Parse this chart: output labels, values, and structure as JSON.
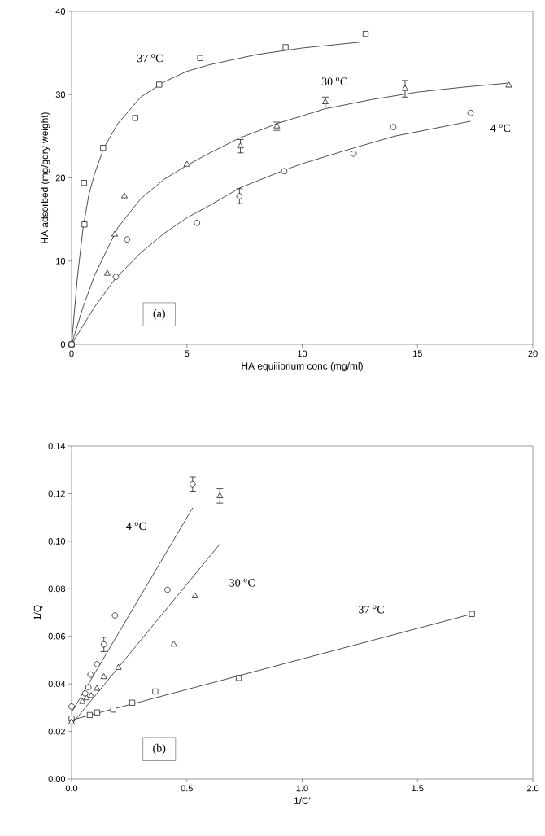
{
  "chart_data": [
    {
      "type": "scatter",
      "xlabel": "HA equilibrium conc (mg/ml)",
      "ylabel": "HA adsorbed  (mg/gdry weight)",
      "xlim": [
        0,
        20
      ],
      "ylim": [
        0,
        40
      ],
      "xticks": [
        0,
        5,
        10,
        15,
        20
      ],
      "yticks": [
        0,
        10,
        20,
        30,
        40
      ],
      "series": [
        {
          "marker": "square",
          "color": "#000000",
          "x": [
            0,
            0.54,
            0.56,
            1.37,
            2.76,
            3.8,
            5.58,
            9.28,
            12.75
          ],
          "values": [
            0,
            19.4,
            14.4,
            23.6,
            27.2,
            31.2,
            34.4,
            35.7,
            37.3
          ]
        },
        {
          "marker": "triangle",
          "color": "#000000",
          "x": [
            0,
            1.55,
            1.87,
            2.29,
            5.0,
            7.32,
            8.9,
            11.0,
            14.46,
            18.96
          ],
          "values": [
            0,
            8.5,
            13.2,
            17.8,
            21.6,
            23.8,
            26.2,
            29.1,
            30.7,
            31.1
          ],
          "errors": [
            null,
            null,
            null,
            null,
            null,
            0.8,
            0.5,
            0.6,
            1.0,
            null
          ]
        },
        {
          "marker": "circle",
          "color": "#000000",
          "x": [
            1.92,
            2.41,
            5.44,
            7.28,
            9.22,
            12.23,
            13.95,
            17.3,
            0
          ],
          "values": [
            8.1,
            12.6,
            14.6,
            17.8,
            20.8,
            22.9,
            26.1,
            27.8,
            0
          ],
          "errors": [
            null,
            null,
            null,
            0.9,
            null,
            null,
            null,
            null,
            null
          ]
        },
        {
          "type": "line",
          "name": "37 $^{o}$C",
          "color": "#000000",
          "x": [
            0,
            0.25,
            0.5,
            0.75,
            1,
            1.4,
            2,
            3,
            4,
            5,
            6,
            8,
            10,
            12.5
          ],
          "values": [
            0,
            8,
            14,
            18,
            20.5,
            23.6,
            26.5,
            29.7,
            31.5,
            32.8,
            33.6,
            34.8,
            35.6,
            36.3
          ]
        },
        {
          "type": "line",
          "name": "30 $^{o}$C",
          "color": "#000000",
          "x": [
            0,
            0.5,
            1,
            2,
            3,
            4,
            5,
            6,
            7.3,
            9,
            11,
            13,
            15,
            17,
            19
          ],
          "values": [
            0,
            4.5,
            8.3,
            14,
            17.5,
            19.8,
            21.5,
            23,
            24.8,
            26.6,
            28.3,
            29.4,
            30.3,
            30.9,
            31.4
          ]
        },
        {
          "type": "line",
          "name": "4 $^{o}$C",
          "color": "#000000",
          "x": [
            0,
            1,
            1.9,
            3,
            4,
            5,
            6,
            7.3,
            9.2,
            10,
            12,
            14,
            17.3
          ],
          "values": [
            0,
            4.5,
            7.9,
            11,
            13.3,
            15.2,
            16.7,
            18.8,
            20.9,
            21.7,
            23.4,
            25,
            26.8
          ]
        }
      ],
      "annotations": [
        "(a)"
      ]
    },
    {
      "type": "scatter",
      "xlabel": "1/C'",
      "ylabel": "1/Q",
      "xlim": [
        0,
        2.0
      ],
      "ylim": [
        0,
        0.14
      ],
      "xticks": [
        {
          "value": 0,
          "label": "0.0"
        },
        {
          "value": 0.5,
          "label": "0.5"
        },
        {
          "value": 1.0,
          "label": "1.0"
        },
        {
          "value": 1.5,
          "label": "1.5"
        },
        {
          "value": 2.0,
          "label": "2.0"
        }
      ],
      "yticks": [
        {
          "value": 0,
          "label": "0.00"
        },
        {
          "value": 0.02,
          "label": "0.02"
        },
        {
          "value": 0.04,
          "label": "0.04"
        },
        {
          "value": 0.06,
          "label": "0.06"
        },
        {
          "value": 0.08,
          "label": "0.08"
        },
        {
          "value": 0.1,
          "label": "0.10"
        },
        {
          "value": 0.12,
          "label": "0.12"
        },
        {
          "value": 0.14,
          "label": "0.14"
        }
      ],
      "series": [
        {
          "marker": "square",
          "color": "#000000",
          "x": [
            0,
            0.079,
            0.111,
            0.181,
            0.263,
            0.363,
            0.725,
            1.736
          ],
          "values": [
            0.0254,
            0.0269,
            0.028,
            0.0292,
            0.0321,
            0.0368,
            0.0425,
            0.0694
          ]
        },
        {
          "marker": "triangle",
          "color": "#000000",
          "x": [
            0,
            0.047,
            0.065,
            0.085,
            0.11,
            0.14,
            0.203,
            0.443,
            0.535,
            0.643
          ],
          "values": [
            0.0239,
            0.0325,
            0.034,
            0.035,
            0.038,
            0.0429,
            0.0468,
            0.0566,
            0.0769,
            0.119
          ],
          "errors": [
            null,
            null,
            null,
            null,
            null,
            null,
            null,
            null,
            null,
            0.003
          ]
        },
        {
          "marker": "circle",
          "color": "#000000",
          "x": [
            0,
            0.059,
            0.073,
            0.082,
            0.111,
            0.14,
            0.188,
            0.416,
            0.525
          ],
          "values": [
            0.0305,
            0.036,
            0.0386,
            0.0439,
            0.0483,
            0.0566,
            0.0688,
            0.0796,
            0.124
          ],
          "errors": [
            null,
            null,
            null,
            null,
            null,
            0.003,
            null,
            null,
            0.003
          ]
        },
        {
          "type": "line",
          "name": "37 $^{o}$C",
          "color": "#000000",
          "x": [
            0,
            1.736
          ],
          "values": [
            0.0248,
            0.0694
          ]
        },
        {
          "type": "line",
          "name": "30 $^{o}$C",
          "color": "#000000",
          "x": [
            0,
            0.643
          ],
          "values": [
            0.023,
            0.0988
          ]
        },
        {
          "type": "line",
          "name": "4 $^{o}$C",
          "color": "#000000",
          "x": [
            0,
            0.525
          ],
          "values": [
            0.028,
            0.114
          ]
        }
      ],
      "annotations": [
        "(b)"
      ]
    }
  ]
}
